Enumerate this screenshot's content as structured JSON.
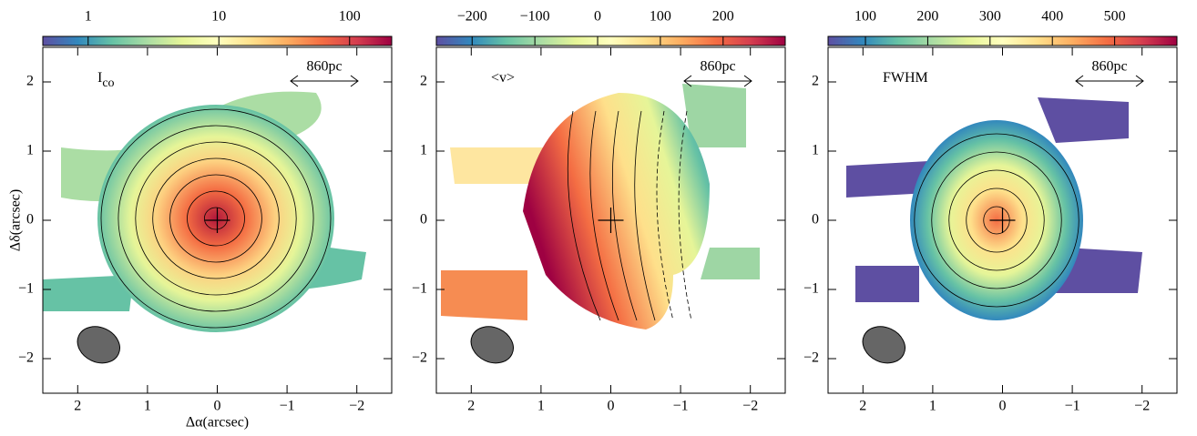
{
  "chart_data": [
    {
      "type": "map",
      "label": {
        "main": "I",
        "sub": "co"
      },
      "scale_bar": "860pc",
      "xlabel": "Δα(arcsec)",
      "ylabel": "Δδ(arcsec)",
      "xlim": [
        2.5,
        -2.5
      ],
      "ylim": [
        -2.5,
        2.5
      ],
      "xticks": [
        2,
        1,
        0,
        {
          "value": -1,
          "label": "−1"
        },
        {
          "value": -2,
          "label": "−2"
        }
      ],
      "yticks": [
        {
          "value": -2,
          "label": "−2"
        },
        {
          "value": -1,
          "label": "−1"
        },
        0,
        1,
        2
      ],
      "colorbar": {
        "log": true,
        "lim": [
          0.45,
          210
        ],
        "ticks": [
          1,
          10,
          100
        ]
      }
    },
    {
      "type": "map",
      "label": {
        "main": "<v>"
      },
      "scale_bar": "860pc",
      "xlim": [
        2.5,
        -2.5
      ],
      "ylim": [
        -2.5,
        2.5
      ],
      "xticks": [
        2,
        1,
        0,
        {
          "value": -1,
          "label": "−1"
        },
        {
          "value": -2,
          "label": "−2"
        }
      ],
      "yticks": [
        {
          "value": -2,
          "label": "−2"
        },
        {
          "value": -1,
          "label": "−1"
        },
        0,
        1,
        2
      ],
      "colorbar": {
        "log": false,
        "lim": [
          -257,
          299
        ],
        "ticks": [
          {
            "value": -200,
            "label": "−200"
          },
          {
            "value": -100,
            "label": "−100"
          },
          0,
          100,
          200
        ]
      }
    },
    {
      "type": "map",
      "label": {
        "main": "FWHM"
      },
      "scale_bar": "860pc",
      "xlim": [
        2.5,
        -2.5
      ],
      "ylim": [
        -2.5,
        2.5
      ],
      "xticks": [
        2,
        1,
        0,
        {
          "value": -1,
          "label": "−1"
        },
        {
          "value": -2,
          "label": "−2"
        }
      ],
      "yticks": [
        {
          "value": -2,
          "label": "−2"
        },
        {
          "value": -1,
          "label": "−1"
        },
        0,
        1,
        2
      ],
      "colorbar": {
        "log": false,
        "lim": [
          40,
          600
        ],
        "ticks": [
          100,
          200,
          300,
          400,
          500
        ]
      }
    }
  ]
}
